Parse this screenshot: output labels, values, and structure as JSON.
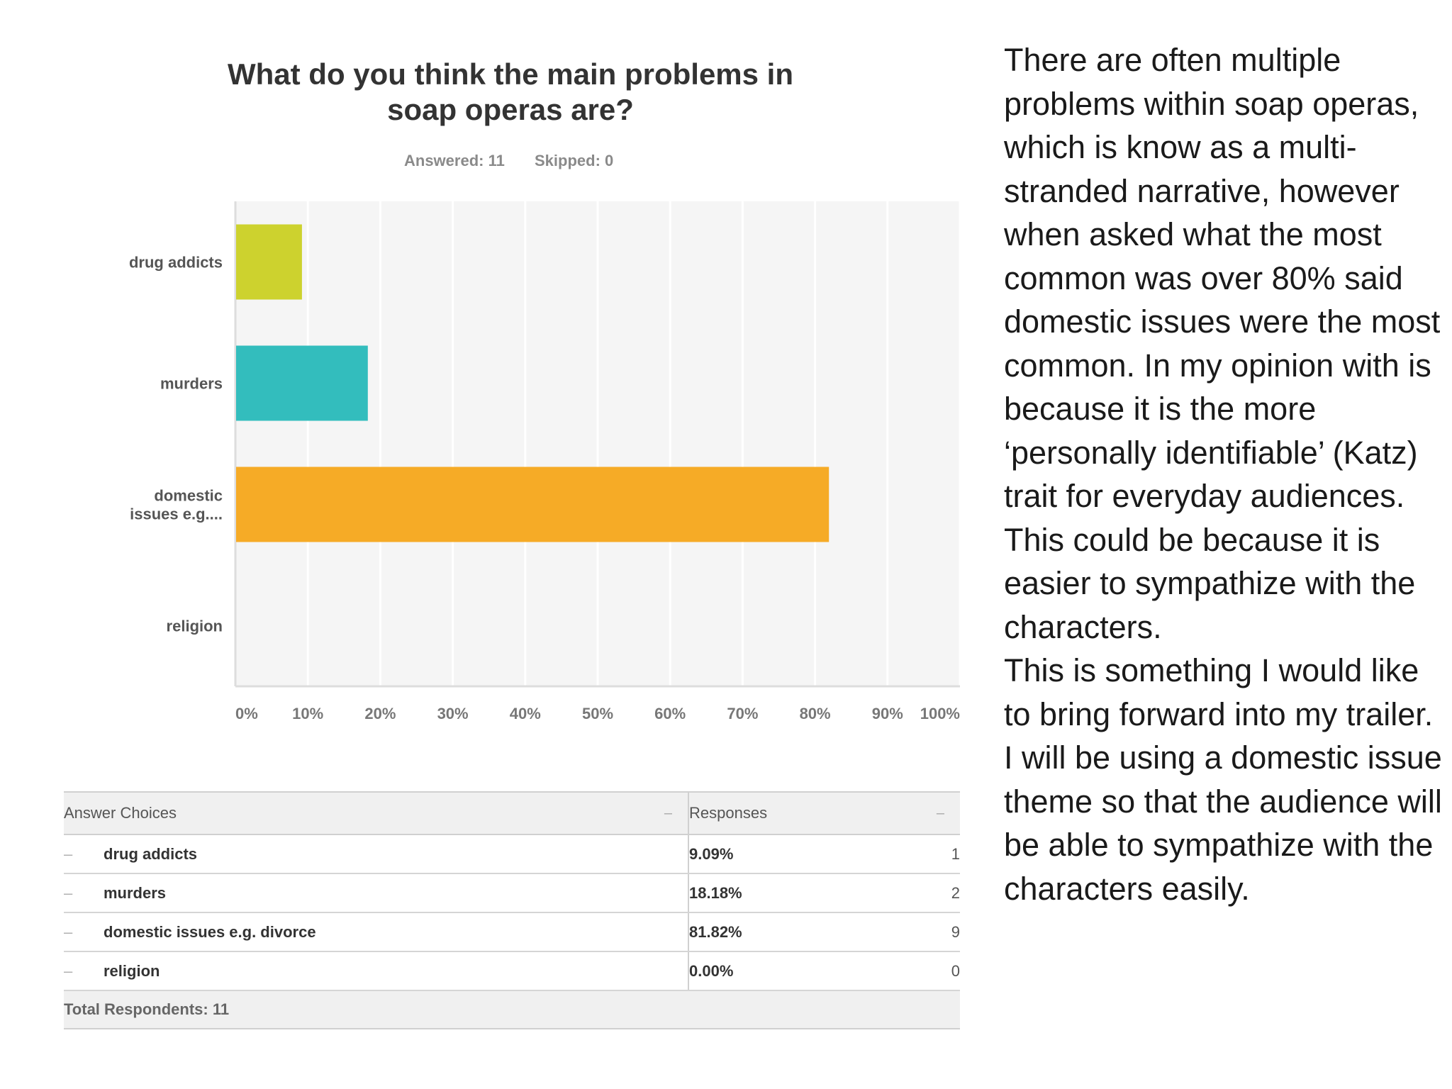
{
  "chart_data": {
    "type": "bar",
    "orientation": "horizontal",
    "title": "What do you think the main problems in soap operas are?",
    "answered_label": "Answered: 11",
    "skipped_label": "Skipped: 0",
    "categories": [
      "drug addicts",
      "murders",
      "domestic issues e.g....",
      "religion"
    ],
    "category_lines": [
      [
        "drug addicts"
      ],
      [
        "murders"
      ],
      [
        "domestic",
        "issues e.g...."
      ],
      [
        "religion"
      ]
    ],
    "values": [
      9.09,
      18.18,
      81.82,
      0.0
    ],
    "colors": [
      "#cdd22e",
      "#33bdbd",
      "#f6ab26",
      "#e05a5a"
    ],
    "xlim": [
      0,
      100
    ],
    "ticks": [
      0,
      10,
      20,
      30,
      40,
      50,
      60,
      70,
      80,
      90,
      100
    ],
    "tick_labels": [
      "0%",
      "10%",
      "20%",
      "30%",
      "40%",
      "50%",
      "60%",
      "70%",
      "80%",
      "90%",
      "100%"
    ],
    "grid": true,
    "xlabel": "",
    "ylabel": ""
  },
  "table": {
    "header_choices": "Answer Choices",
    "header_responses": "Responses",
    "header_dash": "–",
    "row_dash": "–",
    "rows": [
      {
        "label": "drug addicts",
        "percent": "9.09%",
        "count": "1"
      },
      {
        "label": "murders",
        "percent": "18.18%",
        "count": "2"
      },
      {
        "label": "domestic issues e.g. divorce",
        "percent": "81.82%",
        "count": "9"
      },
      {
        "label": "religion",
        "percent": "0.00%",
        "count": "0"
      }
    ],
    "total": "Total Respondents: 11"
  },
  "commentary": [
    "There are often multiple problems within soap operas, which is know as a multi-stranded narrative, however when asked what the most common was over 80% said domestic issues were the most common.  In my opinion with is because it is the more ‘personally identifiable’ (Katz) trait for everyday audiences. This could be because it is easier to sympathize with the characters.",
    "This is something I would like to bring forward into my trailer. I will be using a domestic issue theme so that the audience will be able to sympathize with the characters easily."
  ]
}
